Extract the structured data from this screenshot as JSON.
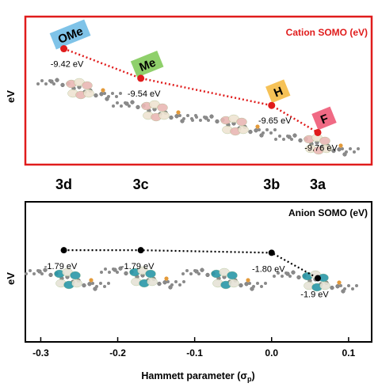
{
  "chart_data": [
    {
      "type": "scatter",
      "panel": "top",
      "title": "Cation SOMO (eV)",
      "ylabel": "eV",
      "show_x_ticks": false,
      "category_labels": [
        {
          "label": "3d",
          "x": -0.27
        },
        {
          "label": "3c",
          "x": -0.17
        },
        {
          "label": "3b",
          "x": 0.0
        },
        {
          "label": "3a",
          "x": 0.06
        }
      ],
      "xlim": [
        -0.32,
        0.13
      ],
      "ylim": [
        -9.89,
        -9.29
      ],
      "points": [
        {
          "x": -0.27,
          "y": -9.42,
          "label": "-9.42 eV",
          "substituent": "OMe",
          "tag_color": "#7fc3e8"
        },
        {
          "x": -0.17,
          "y": -9.54,
          "label": "-9.54 eV",
          "substituent": "Me",
          "tag_color": "#8fd06b"
        },
        {
          "x": 0.0,
          "y": -9.65,
          "label": "-9.65 eV",
          "substituent": "H",
          "tag_color": "#f6c257"
        },
        {
          "x": 0.06,
          "y": -9.76,
          "label": "-9.76 eV",
          "substituent": "F",
          "tag_color": "#f06a84"
        }
      ],
      "frame_color": "#e01c1c",
      "point_color": "#e01c1c",
      "line_style": "dotted"
    },
    {
      "type": "scatter",
      "panel": "bottom",
      "title": "Anion SOMO (eV)",
      "ylabel": "eV",
      "xlabel": "Hammett parameter (σ",
      "xlabel_sub": "p",
      "xlabel_close": ")",
      "xlim": [
        -0.32,
        0.13
      ],
      "ylim": [
        -2.15,
        -1.6
      ],
      "xticks": [
        -0.3,
        -0.2,
        -0.1,
        0.0,
        0.1
      ],
      "xtick_labels": [
        "-0.3",
        "-0.2",
        "-0.1",
        "0.0",
        "0.1"
      ],
      "points": [
        {
          "x": -0.27,
          "y": -1.79,
          "label": "-1.79 eV"
        },
        {
          "x": -0.17,
          "y": -1.79,
          "label": "-1.79 eV"
        },
        {
          "x": 0.0,
          "y": -1.8,
          "label": "-1.80 eV"
        },
        {
          "x": 0.06,
          "y": -1.9,
          "label": "-1.9 eV"
        }
      ],
      "frame_color": "#000000",
      "point_color": "#000000",
      "line_style": "dotted"
    }
  ],
  "colors": {
    "cation_orbital_lobe": "#e9b7b4",
    "cation_orbital_alt": "#efe4d2",
    "anion_orbital_lobe": "#2a97a8",
    "anion_orbital_alt": "#e6e3d6",
    "atom_gray": "#8a8a8a",
    "atom_orange": "#e39a3a"
  }
}
